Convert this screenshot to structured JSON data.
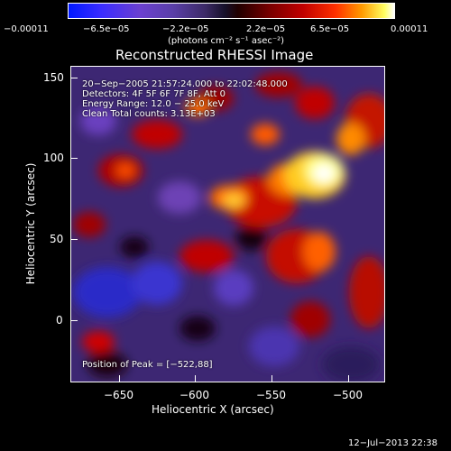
{
  "colorbar": {
    "ticks": [
      "−0.00011",
      "−6.5e−05",
      "−2.2e−05",
      "2.2e−05",
      "6.5e−05",
      "0.00011"
    ],
    "units": "(photons cm⁻² s⁻¹ asec⁻²)"
  },
  "plot": {
    "title": "Reconstructed RHESSI Image",
    "annotations": [
      "20−Sep−2005 21:57:24.000 to 22:02:48.000",
      "Detectors: 4F 5F 6F 7F 8F, Att 0",
      "Energy Range: 12.0 − 25.0 keV",
      "Clean    Total counts: 3.13E+03"
    ],
    "peak_text": "Position of Peak = [−522,88]",
    "xlabel": "Heliocentric X (arcsec)",
    "ylabel": "Heliocentric Y (arcsec)",
    "xticks": [
      "−650",
      "−600",
      "−550",
      "−500"
    ],
    "yticks": [
      "150",
      "100",
      "50",
      "0"
    ]
  },
  "footer": {
    "timestamp": "12−Jul−2013 22:38"
  },
  "chart_data": {
    "type": "heatmap",
    "title": "Reconstructed RHESSI Image",
    "xlabel": "Heliocentric X (arcsec)",
    "ylabel": "Heliocentric Y (arcsec)",
    "xlim": [
      -675,
      -488
    ],
    "ylim": [
      -40,
      155
    ],
    "colorbar_range": [
      -0.00011,
      0.00011
    ],
    "peak": [
      -522,
      88
    ]
  }
}
